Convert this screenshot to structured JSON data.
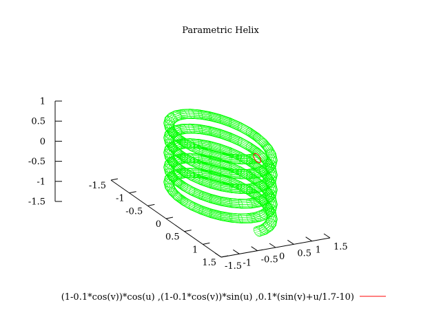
{
  "chart_data": {
    "type": "surface",
    "title": "Parametric Helix",
    "legend_label": "(1-0.1*cos(v))*cos(u) ,(1-0.1*cos(v))*sin(u) ,0.1*(sin(v)+u/1.7-10)",
    "legend_position": "bottom",
    "parametric": {
      "x": "(1-0.1*cos(v))*cos(u)",
      "y": "(1-0.1*cos(v))*sin(u)",
      "z": "0.1*(sin(v)+u/1.7-10)",
      "u_range": [
        0,
        31.4159
      ],
      "v_range": [
        0,
        6.2832
      ]
    },
    "xlim": [
      -1.5,
      1.5
    ],
    "ylim": [
      -1.5,
      1.5
    ],
    "zlim": [
      -1.5,
      1
    ],
    "x_ticks": [
      "-1.5",
      "-1",
      "-0.5",
      "0",
      "0.5",
      "1",
      "1.5"
    ],
    "y_ticks": [
      "-1.5",
      "-1",
      "-0.5",
      "0",
      "0.5",
      "1",
      "1.5"
    ],
    "z_ticks": [
      "-1.5",
      "-1",
      "-0.5",
      "0",
      "0.5",
      "1"
    ],
    "colors": {
      "surface": "#00ff00",
      "surface_end": "#ff0000",
      "legend_line": "#ff0000",
      "axes": "#000000"
    }
  }
}
